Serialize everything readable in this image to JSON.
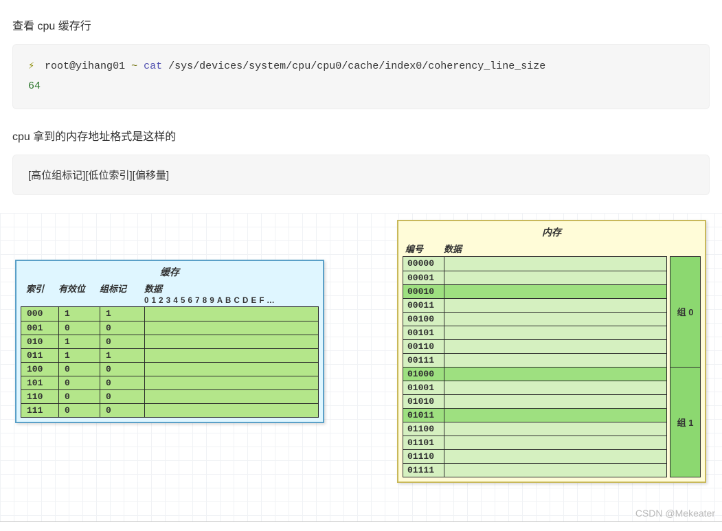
{
  "heading1": "查看 cpu 缓存行",
  "terminal": {
    "bolt": "⚡",
    "prompt": "root@yihang01",
    "tilde": "~",
    "cmd_cat": "cat",
    "cmd_path": "/sys/devices/system/cpu/cpu0/cache/index0/coherency_line_size",
    "output": "64",
    "bg": "#f6f6f6",
    "font": "Courier New"
  },
  "heading2": "cpu 拿到的内存地址格式是这样的",
  "address_format": "[高位组标记][低位索引][偏移量]",
  "diagram": {
    "grid_bg": "#ffffff",
    "grid_line": "#f0f2f5",
    "cache": {
      "title": "缓存",
      "bg": "#dff6ff",
      "border": "#5aa0c8",
      "row_bg": "#b4e68a",
      "headers": {
        "index": "索引",
        "valid": "有效位",
        "tag": "组标记",
        "data": "数据"
      },
      "data_sub": "0 1 2 3 4 5 6 7 8 9 A B C D E F ...",
      "rows": [
        {
          "idx": "000",
          "valid": "1",
          "tag": "1"
        },
        {
          "idx": "001",
          "valid": "0",
          "tag": "0"
        },
        {
          "idx": "010",
          "valid": "1",
          "tag": "0"
        },
        {
          "idx": "011",
          "valid": "1",
          "tag": "1"
        },
        {
          "idx": "100",
          "valid": "0",
          "tag": "0"
        },
        {
          "idx": "101",
          "valid": "0",
          "tag": "0"
        },
        {
          "idx": "110",
          "valid": "0",
          "tag": "0"
        },
        {
          "idx": "111",
          "valid": "0",
          "tag": "0"
        }
      ]
    },
    "memory": {
      "title": "内存",
      "bg": "#fffcd8",
      "border": "#c8b85a",
      "row_bg": "#d5f0c0",
      "row_hl_bg": "#9ee080",
      "group_bg": "#8cd870",
      "headers": {
        "id": "编号",
        "data": "数据"
      },
      "rows": [
        {
          "id": "00000",
          "hl": false
        },
        {
          "id": "00001",
          "hl": false
        },
        {
          "id": "00010",
          "hl": true
        },
        {
          "id": "00011",
          "hl": false
        },
        {
          "id": "00100",
          "hl": false
        },
        {
          "id": "00101",
          "hl": false
        },
        {
          "id": "00110",
          "hl": false
        },
        {
          "id": "00111",
          "hl": false
        },
        {
          "id": "01000",
          "hl": true
        },
        {
          "id": "01001",
          "hl": false
        },
        {
          "id": "01010",
          "hl": false
        },
        {
          "id": "01011",
          "hl": true
        },
        {
          "id": "01100",
          "hl": false
        },
        {
          "id": "01101",
          "hl": false
        },
        {
          "id": "01110",
          "hl": false
        },
        {
          "id": "01111",
          "hl": false
        }
      ],
      "groups": [
        "组 0",
        "组 1"
      ]
    },
    "arrows": {
      "color": "#4a4a4a",
      "stroke_width": 1.5,
      "paths": [
        "M472,159 L520,159 L520,119 L576,119",
        "M472,179 L500,179 L500,199 L576,199",
        "M472,199 L530,199 L530,239 L576,239",
        "M472,219 L510,219 L510,299 L576,299"
      ]
    }
  },
  "watermark": "CSDN @Mekeater"
}
